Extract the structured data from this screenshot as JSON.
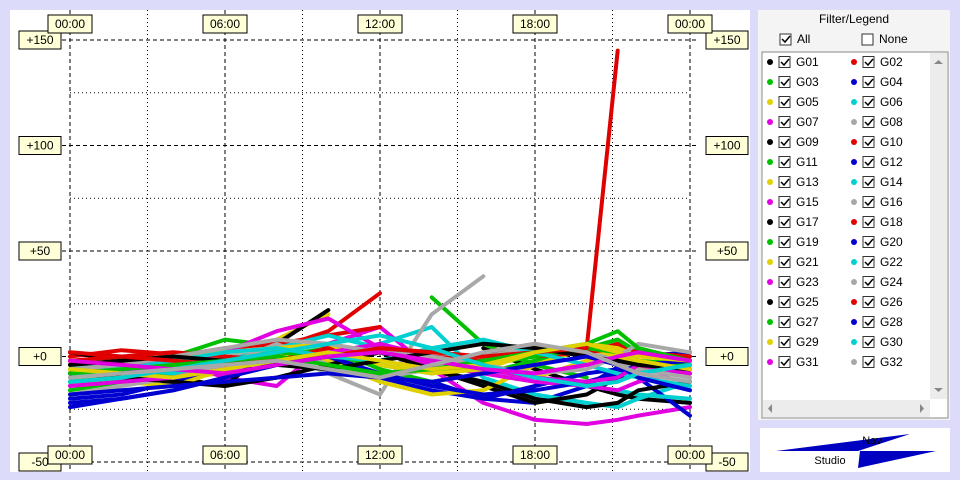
{
  "chart_data": {
    "type": "line",
    "x": [
      0,
      2,
      4,
      6,
      8,
      10,
      12,
      14,
      16,
      18,
      20,
      21.2,
      22,
      24
    ],
    "xlim": [
      0,
      24
    ],
    "xticks": [
      {
        "value": 0,
        "label": "00:00"
      },
      {
        "value": 6,
        "label": "06:00"
      },
      {
        "value": 12,
        "label": "12:00"
      },
      {
        "value": 18,
        "label": "18:00"
      },
      {
        "value": 24,
        "label": "00:00"
      }
    ],
    "minor_xticks": [
      3,
      9,
      15,
      21
    ],
    "ylim": [
      -50,
      150
    ],
    "yticks": [
      {
        "value": 150,
        "label": "+150"
      },
      {
        "value": 100,
        "label": "+100"
      },
      {
        "value": 50,
        "label": "+50"
      },
      {
        "value": 0,
        "label": "+0"
      },
      -50
    ],
    "minor_yticks": [
      125,
      75,
      25,
      -25
    ],
    "grid": true,
    "series": [
      {
        "name": "G01",
        "color": "#000000",
        "values": [
          -12,
          -8,
          -4,
          2,
          null,
          null,
          null,
          null,
          4,
          -6,
          -14,
          -18,
          -20,
          -22
        ]
      },
      {
        "name": "G02",
        "color": "#e00000",
        "values": [
          0,
          3,
          1,
          -2,
          4,
          12,
          30,
          null,
          null,
          null,
          2,
          6,
          3,
          -4
        ]
      },
      {
        "name": "G03",
        "color": "#00c000",
        "values": [
          -6,
          -3,
          0,
          8,
          5,
          -2,
          null,
          28,
          6,
          -4,
          -10,
          null,
          null,
          null
        ]
      },
      {
        "name": "G04",
        "color": "#0000d0",
        "values": [
          -22,
          -20,
          -16,
          -10,
          -4,
          null,
          null,
          -12,
          -20,
          -22,
          -14,
          -5,
          0,
          2
        ]
      },
      {
        "name": "G05",
        "color": "#e0d000",
        "values": [
          -2,
          -6,
          -10,
          -8,
          8,
          20,
          null,
          null,
          -5,
          -10,
          -2,
          3,
          2,
          -4
        ]
      },
      {
        "name": "G06",
        "color": "#00d0d0",
        "values": [
          null,
          null,
          -8,
          -4,
          -2,
          2,
          6,
          14,
          -10,
          -18,
          -22,
          -24,
          -20,
          -12
        ]
      },
      {
        "name": "G07",
        "color": "#e000e0",
        "values": [
          -8,
          -4,
          -2,
          -10,
          -14,
          6,
          14,
          -6,
          -22,
          -30,
          -32,
          -30,
          -28,
          -24
        ]
      },
      {
        "name": "G08",
        "color": "#a8a8a8",
        "values": [
          -14,
          -10,
          -4,
          0,
          2,
          -8,
          -18,
          20,
          38,
          null,
          2,
          0,
          -2,
          -10
        ]
      },
      {
        "name": "G09",
        "color": "#000000",
        "values": [
          2,
          -2,
          -10,
          -14,
          6,
          22,
          null,
          -6,
          -14,
          -22,
          -18,
          -10,
          -6,
          -2
        ]
      },
      {
        "name": "G10",
        "color": "#e00000",
        "values": [
          -4,
          -2,
          0,
          4,
          6,
          10,
          14,
          null,
          2,
          6,
          0,
          -4,
          -6,
          -2
        ]
      },
      {
        "name": "G11",
        "color": "#00c000",
        "values": [
          -16,
          -12,
          -8,
          -4,
          0,
          4,
          -6,
          -12,
          -8,
          -2,
          4,
          8,
          2,
          -6
        ]
      },
      {
        "name": "G12",
        "color": "#0000d0",
        "values": [
          -20,
          -18,
          -12,
          -6,
          0,
          -2,
          -10,
          -16,
          -20,
          -14,
          -8,
          -6,
          -10,
          -28
        ]
      },
      {
        "name": "G13",
        "color": "#e0d000",
        "values": [
          -10,
          -12,
          -14,
          -6,
          2,
          -2,
          -12,
          -18,
          -16,
          -4,
          4,
          0,
          -4,
          -8
        ]
      },
      {
        "name": "G14",
        "color": "#00d0d0",
        "values": [
          -4,
          -6,
          -8,
          -2,
          4,
          10,
          4,
          -2,
          -6,
          -10,
          -14,
          -16,
          -18,
          -20
        ]
      },
      {
        "name": "G15",
        "color": "#e000e0",
        "values": [
          -6,
          -8,
          -4,
          2,
          12,
          18,
          4,
          -4,
          -8,
          -12,
          -14,
          -16,
          -12,
          -6
        ]
      },
      {
        "name": "G16",
        "color": "#a8a8a8",
        "values": [
          -18,
          -14,
          -10,
          -4,
          6,
          -4,
          -10,
          -6,
          0,
          4,
          2,
          -2,
          -6,
          -10
        ]
      },
      {
        "name": "G17",
        "color": "#000000",
        "values": [
          -8,
          -10,
          -12,
          -14,
          -10,
          -4,
          2,
          -6,
          -12,
          -20,
          -24,
          -22,
          -16,
          -12
        ]
      },
      {
        "name": "G18",
        "color": "#e00000",
        "values": [
          -2,
          0,
          2,
          0,
          -2,
          4,
          2,
          0,
          -2,
          0,
          2,
          4,
          2,
          0
        ]
      },
      {
        "name": "G19",
        "color": "#00c000",
        "values": [
          -12,
          -10,
          -6,
          -2,
          2,
          0,
          -4,
          -8,
          -4,
          0,
          4,
          2,
          -2,
          -4
        ]
      },
      {
        "name": "G20",
        "color": "#0000d0",
        "values": [
          -24,
          -20,
          -16,
          -10,
          -4,
          0,
          -8,
          -14,
          -18,
          -16,
          -12,
          -8,
          -4,
          -2
        ]
      },
      {
        "name": "G21",
        "color": "#e0d000",
        "values": [
          -4,
          -2,
          0,
          2,
          4,
          6,
          -4,
          -8,
          -6,
          2,
          6,
          4,
          0,
          -2
        ]
      },
      {
        "name": "G22",
        "color": "#00d0d0",
        "values": [
          -10,
          -6,
          -2,
          2,
          4,
          0,
          -2,
          4,
          8,
          2,
          -4,
          -8,
          -10,
          -14
        ]
      },
      {
        "name": "G23",
        "color": "#e000e0",
        "values": [
          -14,
          -12,
          -10,
          -6,
          -2,
          2,
          6,
          0,
          -6,
          -10,
          -12,
          -10,
          -4,
          -8
        ]
      },
      {
        "name": "G24",
        "color": "#a8a8a8",
        "values": [
          -6,
          -4,
          0,
          4,
          8,
          6,
          2,
          0,
          -4,
          -8,
          -6,
          0,
          6,
          2
        ]
      },
      {
        "name": "G25",
        "color": "#000000",
        "values": [
          -4,
          -2,
          0,
          -2,
          -4,
          -6,
          -2,
          2,
          6,
          4,
          0,
          -2,
          -4,
          -6
        ]
      },
      {
        "name": "G26",
        "color": "#e00000",
        "values": [
          2,
          0,
          -2,
          -4,
          -2,
          0,
          4,
          2,
          0,
          2,
          4,
          145,
          null,
          null
        ]
      },
      {
        "name": "G27",
        "color": "#00c000",
        "values": [
          -8,
          -6,
          -4,
          -2,
          0,
          -4,
          -8,
          -6,
          -2,
          2,
          6,
          12,
          4,
          -2
        ]
      },
      {
        "name": "G28",
        "color": "#0000d0",
        "values": [
          -18,
          -16,
          -14,
          -12,
          -10,
          -8,
          -10,
          -12,
          -8,
          -4,
          0,
          -4,
          -10,
          -16
        ]
      },
      {
        "name": "G29",
        "color": "#e0d000",
        "values": [
          -6,
          -8,
          -10,
          -6,
          -2,
          2,
          -2,
          -6,
          -4,
          2,
          6,
          2,
          -2,
          -6
        ]
      },
      {
        "name": "G30",
        "color": "#00d0d0",
        "values": [
          -12,
          -10,
          -6,
          -2,
          2,
          6,
          10,
          4,
          -4,
          -10,
          -14,
          -12,
          -8,
          -4
        ]
      },
      {
        "name": "G31",
        "color": "#e000e0",
        "values": [
          -2,
          -4,
          -6,
          -8,
          -4,
          0,
          2,
          -2,
          -6,
          -8,
          -4,
          0,
          2,
          -2
        ]
      },
      {
        "name": "G32",
        "color": "#a8a8a8",
        "values": [
          -10,
          -8,
          -6,
          -4,
          -2,
          -6,
          -10,
          -4,
          2,
          6,
          2,
          -4,
          -8,
          -12
        ]
      }
    ]
  },
  "legend_panel": {
    "title": "Filter/Legend",
    "all": "All",
    "none": "None"
  },
  "logo": {
    "top": "Nav",
    "bottom": "Studio"
  }
}
